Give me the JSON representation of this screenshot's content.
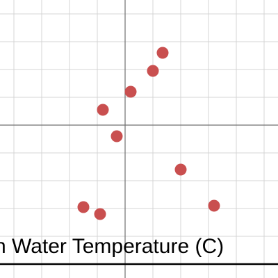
{
  "chart_data": {
    "type": "scatter",
    "xlabel": "n Water Temperature (C)",
    "ylabel": "",
    "grid": true,
    "point_color": "#c94f4f",
    "xlim": [
      -4.5,
      5.5
    ],
    "ylim": [
      -5.5,
      4.5
    ],
    "points": [
      {
        "x": 1.35,
        "y": 2.6
      },
      {
        "x": 1.0,
        "y": 1.95
      },
      {
        "x": 0.2,
        "y": 1.2
      },
      {
        "x": -0.8,
        "y": 0.55
      },
      {
        "x": -0.3,
        "y": -0.4
      },
      {
        "x": 2.0,
        "y": -1.6
      },
      {
        "x": 3.2,
        "y": -2.9
      },
      {
        "x": -1.5,
        "y": -2.95
      },
      {
        "x": -0.9,
        "y": -3.2
      }
    ]
  }
}
